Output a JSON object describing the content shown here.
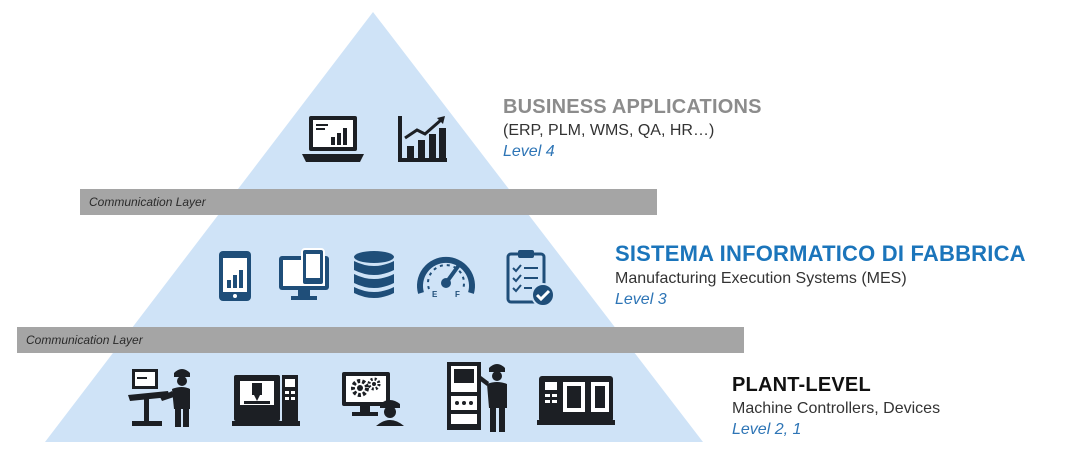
{
  "colors": {
    "pyramid_fill": "#cfe3f7",
    "band": "#a5a5a5",
    "icon": "#1c1f24",
    "icon_accent": "#1f4e79",
    "level4_title": "#8c8c8c",
    "level3_title": "#1b75bb",
    "level21_title": "#111111",
    "level_label": "#2e75b6"
  },
  "communication_layers": [
    {
      "label": "Communication Layer"
    },
    {
      "label": "Communication Layer"
    }
  ],
  "levels": {
    "business": {
      "title": "BUSINESS APPLICATIONS",
      "subtitle": "(ERP, PLM, WMS, QA, HR…)",
      "level": "Level 4",
      "icons": [
        "laptop-chart-icon",
        "bar-chart-growth-icon"
      ]
    },
    "mes": {
      "title": "SISTEMA INFORMATICO DI FABBRICA",
      "subtitle": "Manufacturing Execution Systems (MES)",
      "level": "Level 3",
      "icons": [
        "tablet-chart-icon",
        "monitor-devices-icon",
        "database-icon",
        "gauge-icon",
        "checklist-clipboard-icon"
      ]
    },
    "plant": {
      "title": "PLANT-LEVEL",
      "subtitle": "Machine Controllers, Devices",
      "level": "Level 2, 1",
      "icons": [
        "worker-workstation-icon",
        "cnc-machine-icon",
        "monitor-gears-worker-icon",
        "control-panel-worker-icon",
        "industrial-machine-icon"
      ]
    }
  }
}
